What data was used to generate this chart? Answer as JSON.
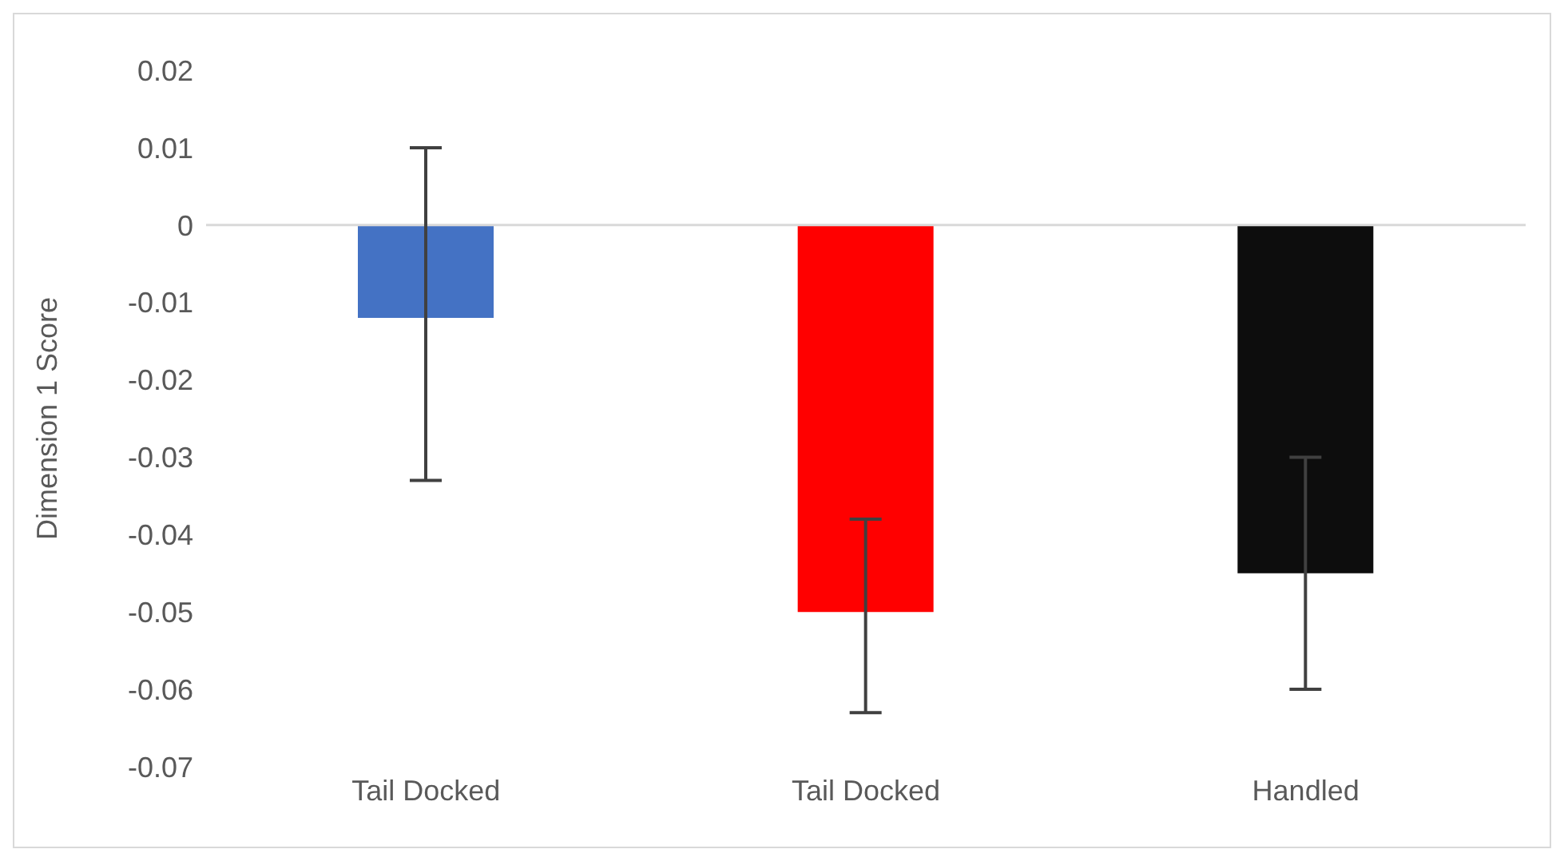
{
  "chart_data": {
    "type": "bar",
    "ylabel": "Dimension 1 Score",
    "categories": [
      "Tail Docked",
      "Tail Docked",
      "Handled"
    ],
    "values": [
      -0.012,
      -0.05,
      -0.045
    ],
    "colors": [
      "#4472c4",
      "#ff0000",
      "#0d0d0d"
    ],
    "errors": [
      [
        -0.033,
        0.01
      ],
      [
        -0.063,
        -0.038
      ],
      [
        -0.06,
        -0.03
      ]
    ],
    "ylim": [
      -0.07,
      0.02
    ],
    "yticks": [
      0.02,
      0.01,
      0,
      -0.01,
      -0.02,
      -0.03,
      -0.04,
      -0.05,
      -0.06,
      -0.07
    ],
    "ref_lines": [
      {
        "axis": "y",
        "value": 0,
        "color": "#d9d9d9"
      }
    ],
    "grid": false,
    "legend": false
  }
}
